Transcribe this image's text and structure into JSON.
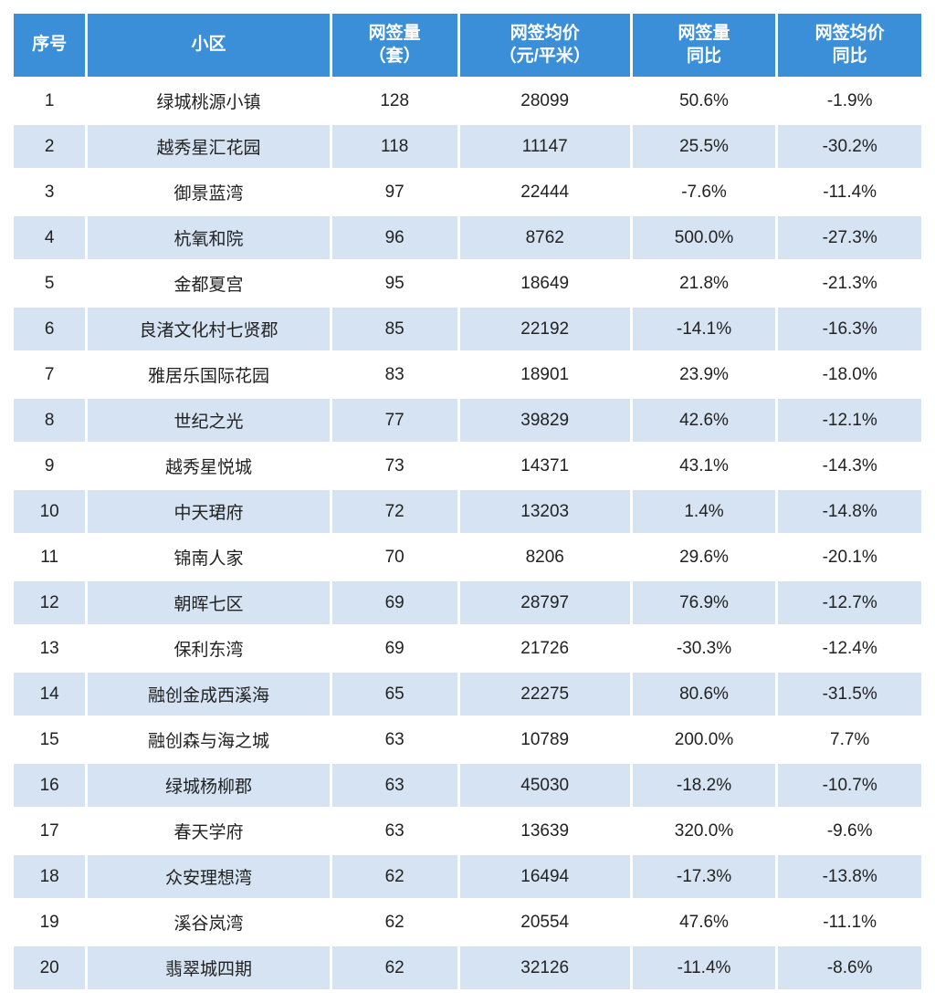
{
  "table": {
    "header_bg": "#3b8fd8",
    "header_text_color": "#ffffff",
    "row_odd_bg": "#ffffff",
    "row_even_bg": "#d5e3f2",
    "text_color": "#222222",
    "font_size_header": 19,
    "font_size_body": 19,
    "column_widths_pct": [
      8,
      27,
      14,
      19,
      16,
      16
    ],
    "columns": [
      "序号",
      "小区",
      "网签量\n（套）",
      "网签均价\n（元/平米）",
      "网签量\n同比",
      "网签均价\n同比"
    ],
    "rows": [
      [
        "1",
        "绿城桃源小镇",
        "128",
        "28099",
        "50.6%",
        "-1.9%"
      ],
      [
        "2",
        "越秀星汇花园",
        "118",
        "11147",
        "25.5%",
        "-30.2%"
      ],
      [
        "3",
        "御景蓝湾",
        "97",
        "22444",
        "-7.6%",
        "-11.4%"
      ],
      [
        "4",
        "杭氧和院",
        "96",
        "8762",
        "500.0%",
        "-27.3%"
      ],
      [
        "5",
        "金都夏宫",
        "95",
        "18649",
        "21.8%",
        "-21.3%"
      ],
      [
        "6",
        "良渚文化村七贤郡",
        "85",
        "22192",
        "-14.1%",
        "-16.3%"
      ],
      [
        "7",
        "雅居乐国际花园",
        "83",
        "18901",
        "23.9%",
        "-18.0%"
      ],
      [
        "8",
        "世纪之光",
        "77",
        "39829",
        "42.6%",
        "-12.1%"
      ],
      [
        "9",
        "越秀星悦城",
        "73",
        "14371",
        "43.1%",
        "-14.3%"
      ],
      [
        "10",
        "中天珺府",
        "72",
        "13203",
        "1.4%",
        "-14.8%"
      ],
      [
        "11",
        "锦南人家",
        "70",
        "8206",
        "29.6%",
        "-20.1%"
      ],
      [
        "12",
        "朝晖七区",
        "69",
        "28797",
        "76.9%",
        "-12.7%"
      ],
      [
        "13",
        "保利东湾",
        "69",
        "21726",
        "-30.3%",
        "-12.4%"
      ],
      [
        "14",
        "融创金成西溪海",
        "65",
        "22275",
        "80.6%",
        "-31.5%"
      ],
      [
        "15",
        "融创森与海之城",
        "63",
        "10789",
        "200.0%",
        "7.7%"
      ],
      [
        "16",
        "绿城杨柳郡",
        "63",
        "45030",
        "-18.2%",
        "-10.7%"
      ],
      [
        "17",
        "春天学府",
        "63",
        "13639",
        "320.0%",
        "-9.6%"
      ],
      [
        "18",
        "众安理想湾",
        "62",
        "16494",
        "-17.3%",
        "-13.8%"
      ],
      [
        "19",
        "溪谷岚湾",
        "62",
        "20554",
        "47.6%",
        "-11.1%"
      ],
      [
        "20",
        "翡翠城四期",
        "62",
        "32126",
        "-11.4%",
        "-8.6%"
      ]
    ]
  }
}
